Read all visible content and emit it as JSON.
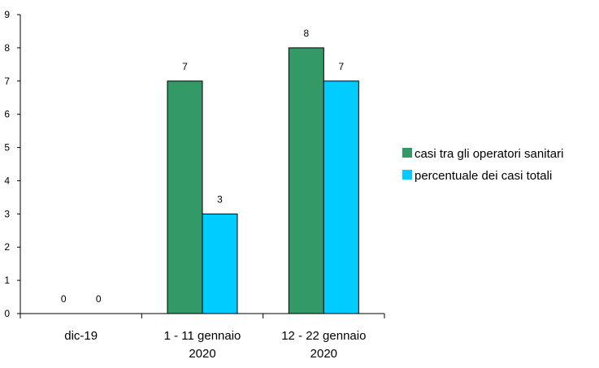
{
  "chart_data": {
    "type": "bar",
    "categories": [
      [
        "dic-19"
      ],
      [
        "1 - 11 gennaio",
        "2020"
      ],
      [
        "12 - 22 gennaio",
        "2020"
      ]
    ],
    "series": [
      {
        "name": "casi tra gli operatori sanitari",
        "color": "#339966",
        "values": [
          0,
          7,
          8
        ]
      },
      {
        "name": "percentuale dei casi totali",
        "color": "#00ccff",
        "values": [
          0,
          3,
          7
        ]
      }
    ],
    "y_ticks": [
      0,
      1,
      2,
      3,
      4,
      5,
      6,
      7,
      8,
      9
    ],
    "ylim": [
      0,
      9
    ],
    "grid": false,
    "legend_position": "right"
  }
}
